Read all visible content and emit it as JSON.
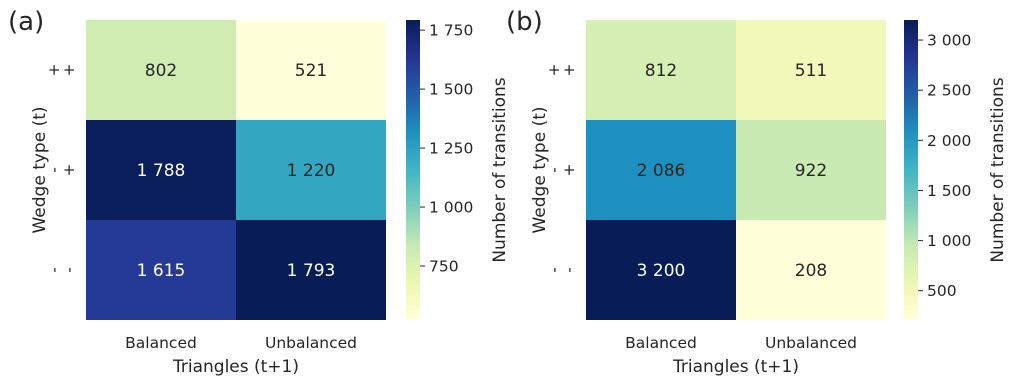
{
  "chart_data": [
    {
      "type": "heatmap",
      "panel_label": "(a)",
      "title": "",
      "xlabel": "Triangles (t+1)",
      "ylabel": "Wedge type (t)",
      "x_categories": [
        "Balanced",
        "Unbalanced"
      ],
      "y_categories": [
        {
          "top": "+",
          "bottom": "+"
        },
        {
          "top": "-",
          "bottom": "+"
        },
        {
          "top": "-",
          "bottom": "-"
        }
      ],
      "values": [
        [
          802,
          521
        ],
        [
          1788,
          1220
        ],
        [
          1615,
          1793
        ]
      ],
      "value_labels": [
        [
          "802",
          "521"
        ],
        [
          "1 788",
          "1 220"
        ],
        [
          "1 615",
          "1 793"
        ]
      ],
      "colorbar": {
        "label": "Number of transitions",
        "range": [
          521,
          1793
        ],
        "ticks": [
          750,
          1000,
          1250,
          1500,
          1750
        ],
        "tick_labels": [
          "750",
          "1 000",
          "1 250",
          "1 500",
          "1 750"
        ],
        "colormap": "YlGnBu"
      }
    },
    {
      "type": "heatmap",
      "panel_label": "(b)",
      "title": "",
      "xlabel": "Triangles (t+1)",
      "ylabel": "Wedge type (t)",
      "x_categories": [
        "Balanced",
        "Unbalanced"
      ],
      "y_categories": [
        {
          "top": "+",
          "bottom": "+"
        },
        {
          "top": "-",
          "bottom": "+"
        },
        {
          "top": "-",
          "bottom": "-"
        }
      ],
      "values": [
        [
          812,
          511
        ],
        [
          2086,
          922
        ],
        [
          3200,
          208
        ]
      ],
      "value_labels": [
        [
          "812",
          "511"
        ],
        [
          "2 086",
          "922"
        ],
        [
          "3 200",
          "208"
        ]
      ],
      "colorbar": {
        "label": "Number of transitions",
        "range": [
          208,
          3200
        ],
        "ticks": [
          500,
          1000,
          1500,
          2000,
          2500,
          3000
        ],
        "tick_labels": [
          "500",
          "1 000",
          "1 500",
          "2 000",
          "2 500",
          "3 000"
        ],
        "colormap": "YlGnBu"
      }
    }
  ]
}
